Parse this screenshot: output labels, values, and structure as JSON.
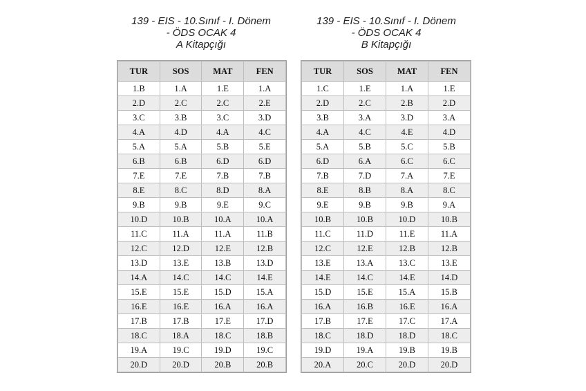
{
  "columns": [
    "TUR",
    "SOS",
    "MAT",
    "FEN"
  ],
  "booklet_a": {
    "title_line1": "139 - EIS - 10.Sınıf - I. Dönem",
    "title_line2": "- ÖDS OCAK 4",
    "title_line3": "A Kitapçığı",
    "rows": [
      [
        "1.B",
        "1.A",
        "1.E",
        "1.A"
      ],
      [
        "2.D",
        "2.C",
        "2.C",
        "2.E"
      ],
      [
        "3.C",
        "3.B",
        "3.C",
        "3.D"
      ],
      [
        "4.A",
        "4.D",
        "4.A",
        "4.C"
      ],
      [
        "5.A",
        "5.A",
        "5.B",
        "5.E"
      ],
      [
        "6.B",
        "6.B",
        "6.D",
        "6.D"
      ],
      [
        "7.E",
        "7.E",
        "7.B",
        "7.B"
      ],
      [
        "8.E",
        "8.C",
        "8.D",
        "8.A"
      ],
      [
        "9.B",
        "9.B",
        "9.E",
        "9.C"
      ],
      [
        "10.D",
        "10.B",
        "10.A",
        "10.A"
      ],
      [
        "11.C",
        "11.A",
        "11.A",
        "11.B"
      ],
      [
        "12.C",
        "12.D",
        "12.E",
        "12.B"
      ],
      [
        "13.D",
        "13.E",
        "13.B",
        "13.D"
      ],
      [
        "14.A",
        "14.C",
        "14.C",
        "14.E"
      ],
      [
        "15.E",
        "15.E",
        "15.D",
        "15.A"
      ],
      [
        "16.E",
        "16.E",
        "16.A",
        "16.A"
      ],
      [
        "17.B",
        "17.B",
        "17.E",
        "17.D"
      ],
      [
        "18.C",
        "18.A",
        "18.C",
        "18.B"
      ],
      [
        "19.A",
        "19.C",
        "19.D",
        "19.C"
      ],
      [
        "20.D",
        "20.D",
        "20.B",
        "20.B"
      ]
    ]
  },
  "booklet_b": {
    "title_line1": "139 - EIS - 10.Sınıf - I. Dönem",
    "title_line2": "- ÖDS OCAK 4",
    "title_line3": "B Kitapçığı",
    "rows": [
      [
        "1.C",
        "1.E",
        "1.A",
        "1.E"
      ],
      [
        "2.D",
        "2.C",
        "2.B",
        "2.D"
      ],
      [
        "3.B",
        "3.A",
        "3.D",
        "3.A"
      ],
      [
        "4.A",
        "4.C",
        "4.E",
        "4.D"
      ],
      [
        "5.A",
        "5.B",
        "5.C",
        "5.B"
      ],
      [
        "6.D",
        "6.A",
        "6.C",
        "6.C"
      ],
      [
        "7.B",
        "7.D",
        "7.A",
        "7.E"
      ],
      [
        "8.E",
        "8.B",
        "8.A",
        "8.C"
      ],
      [
        "9.E",
        "9.B",
        "9.B",
        "9.A"
      ],
      [
        "10.B",
        "10.B",
        "10.D",
        "10.B"
      ],
      [
        "11.C",
        "11.D",
        "11.E",
        "11.A"
      ],
      [
        "12.C",
        "12.E",
        "12.B",
        "12.B"
      ],
      [
        "13.E",
        "13.A",
        "13.C",
        "13.E"
      ],
      [
        "14.E",
        "14.C",
        "14.E",
        "14.D"
      ],
      [
        "15.D",
        "15.E",
        "15.A",
        "15.B"
      ],
      [
        "16.A",
        "16.B",
        "16.E",
        "16.A"
      ],
      [
        "17.B",
        "17.E",
        "17.C",
        "17.A"
      ],
      [
        "18.C",
        "18.D",
        "18.D",
        "18.C"
      ],
      [
        "19.D",
        "19.A",
        "19.B",
        "19.B"
      ],
      [
        "20.A",
        "20.C",
        "20.D",
        "20.D"
      ]
    ]
  }
}
